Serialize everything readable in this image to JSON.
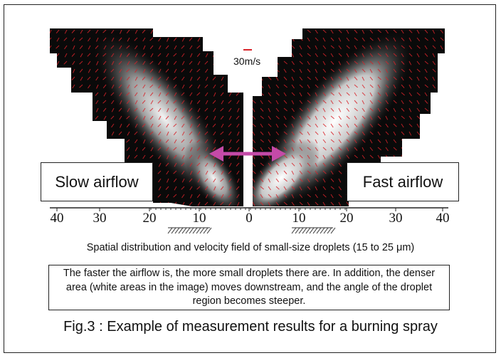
{
  "figure": {
    "scale_label": "30m/s",
    "left_label": "Slow airflow",
    "right_label": "Fast airflow",
    "axis_ticks": [
      "40",
      "30",
      "20",
      "10",
      "0",
      "10",
      "20",
      "30",
      "40"
    ],
    "colors": {
      "background_field": "#0a0a0a",
      "vector": "#d8232a",
      "arrow": "#c44aa8",
      "highlight": "#ffffff"
    }
  },
  "subcaption": "Spatial distribution and velocity field of small-size droplets (15 to 25 μm)",
  "note": "The faster the airflow is, the more small droplets there are. In addition, the denser area (white areas in the image) moves downstream, and the angle of the droplet region becomes steeper.",
  "caption": "Fig.3 : Example of measurement results for a burning spray"
}
